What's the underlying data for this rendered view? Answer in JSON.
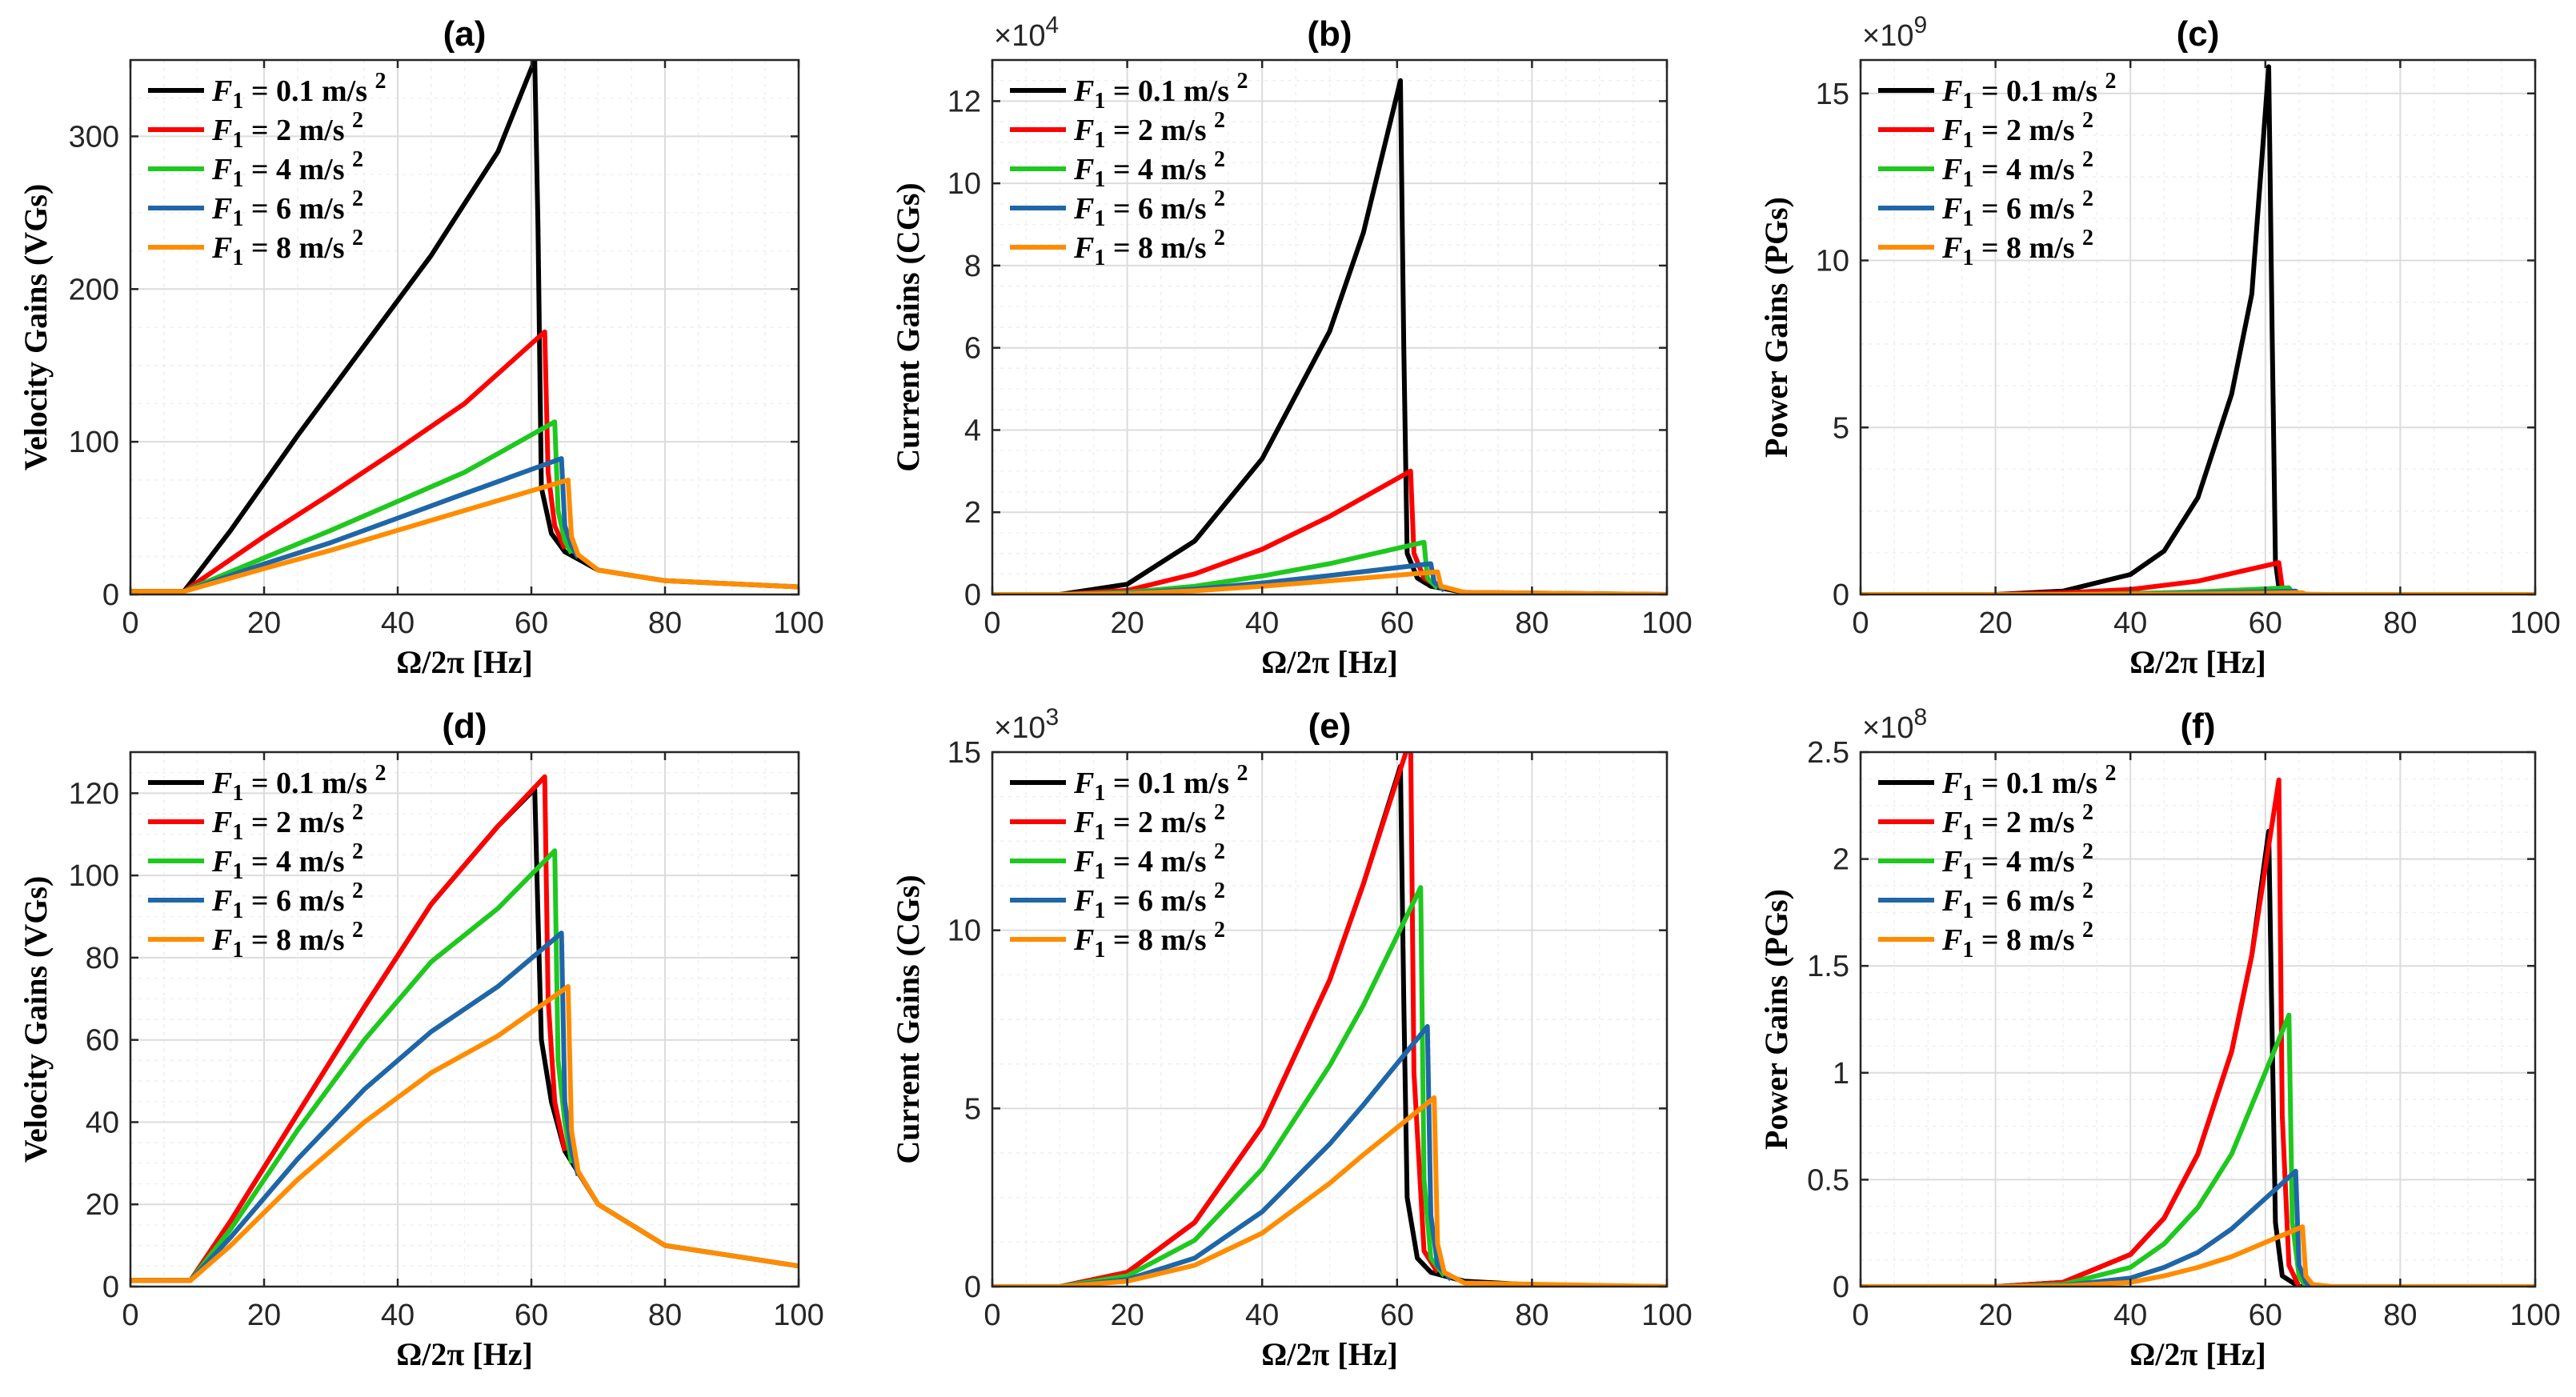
{
  "colors": {
    "0.1": "#000000",
    "2": "#ff0000",
    "4": "#1ec81e",
    "6": "#1f66a8",
    "8": "#ff8c00"
  },
  "legend_prefix": "F",
  "legend_subscript": "1",
  "legend_eq": " = ",
  "legend_unit": " m/s ",
  "legend_sup": "2",
  "chart_data": [
    {
      "id": "a",
      "type": "line",
      "title": "(a)",
      "xlabel": "Ω/2π [Hz]",
      "ylabel": "Velocity Gains (VGs)",
      "xlim": [
        0,
        100
      ],
      "ylim": [
        0,
        350
      ],
      "xticks": [
        0,
        20,
        40,
        60,
        80,
        100
      ],
      "yticks": [
        0,
        100,
        200,
        300
      ],
      "exponent": "",
      "legend": "top-left",
      "grid": true,
      "series": [
        {
          "name": "F1 = 0.1 m/s 2",
          "legend_value": "0.1",
          "color": "#000000",
          "x": [
            0,
            8,
            15,
            25,
            35,
            45,
            55,
            60.5,
            61.0,
            61.5,
            63,
            65,
            70,
            80,
            100
          ],
          "y": [
            2,
            2,
            42,
            104,
            163,
            222,
            290,
            350,
            240,
            70,
            40,
            28,
            16,
            9,
            5
          ]
        },
        {
          "name": "F1 = 2 m/s 2",
          "legend_value": "2",
          "color": "#ff0000",
          "x": [
            0,
            8,
            20,
            30,
            40,
            50,
            62,
            62.5,
            63.5,
            65
          ],
          "y": [
            2,
            2,
            38,
            66,
            95,
            125,
            172,
            80,
            45,
            30
          ]
        },
        {
          "name": "F1 = 4 m/s 2",
          "legend_value": "4",
          "color": "#1ec81e",
          "x": [
            0,
            8,
            20,
            30,
            40,
            50,
            63.5,
            64,
            65,
            66
          ],
          "y": [
            2,
            2,
            24,
            42,
            61,
            80,
            113,
            55,
            35,
            27
          ]
        },
        {
          "name": "F1 = 6 m/s 2",
          "legend_value": "6",
          "color": "#1f66a8",
          "x": [
            0,
            8,
            20,
            30,
            40,
            50,
            64.5,
            65,
            66,
            67
          ],
          "y": [
            2,
            2,
            20,
            34,
            50,
            66,
            89,
            45,
            32,
            24
          ]
        },
        {
          "name": "F1 = 8 m/s 2",
          "legend_value": "8",
          "color": "#ff8c00",
          "x": [
            0,
            8,
            20,
            30,
            40,
            50,
            65.5,
            66,
            67,
            70,
            80,
            100
          ],
          "y": [
            2,
            2,
            17,
            29,
            42,
            55,
            75,
            38,
            26,
            16,
            9,
            5
          ]
        }
      ]
    },
    {
      "id": "b",
      "type": "line",
      "title": "(b)",
      "xlabel": "Ω/2π [Hz]",
      "ylabel": "Current Gains (CGs)",
      "xlim": [
        0,
        100
      ],
      "ylim": [
        0,
        13
      ],
      "xticks": [
        0,
        20,
        40,
        60,
        80,
        100
      ],
      "yticks": [
        0,
        2,
        4,
        6,
        8,
        10,
        12
      ],
      "exponent": "4",
      "legend": "top-left",
      "grid": true,
      "series": [
        {
          "name": "F1 = 0.1 m/s 2",
          "legend_value": "0.1",
          "color": "#000000",
          "x": [
            0,
            10,
            20,
            30,
            40,
            50,
            55,
            60.5,
            61,
            61.5,
            63,
            65,
            70,
            100
          ],
          "y": [
            0,
            0,
            0.25,
            1.3,
            3.3,
            6.4,
            8.8,
            12.5,
            6,
            1,
            0.4,
            0.2,
            0.05,
            0
          ]
        },
        {
          "name": "F1 = 2 m/s 2",
          "legend_value": "2",
          "color": "#ff0000",
          "x": [
            0,
            10,
            20,
            30,
            40,
            50,
            62,
            62.5,
            64,
            66
          ],
          "y": [
            0,
            0,
            0.1,
            0.5,
            1.1,
            1.9,
            3.0,
            1.0,
            0.4,
            0.2
          ]
        },
        {
          "name": "F1 = 4 m/s 2",
          "legend_value": "4",
          "color": "#1ec81e",
          "x": [
            0,
            10,
            20,
            30,
            40,
            50,
            64,
            64.5,
            66
          ],
          "y": [
            0,
            0,
            0.05,
            0.2,
            0.45,
            0.75,
            1.27,
            0.4,
            0.15
          ]
        },
        {
          "name": "F1 = 6 m/s 2",
          "legend_value": "6",
          "color": "#1f66a8",
          "x": [
            0,
            10,
            20,
            30,
            40,
            50,
            65,
            65.5,
            67
          ],
          "y": [
            0,
            0,
            0.03,
            0.13,
            0.28,
            0.46,
            0.75,
            0.3,
            0.1
          ]
        },
        {
          "name": "F1 = 8 m/s 2",
          "legend_value": "8",
          "color": "#ff8c00",
          "x": [
            0,
            10,
            20,
            30,
            40,
            50,
            66,
            66.5,
            70,
            100
          ],
          "y": [
            0,
            0,
            0.02,
            0.09,
            0.2,
            0.33,
            0.55,
            0.2,
            0.05,
            0
          ]
        }
      ]
    },
    {
      "id": "c",
      "type": "line",
      "title": "(c)",
      "xlabel": "Ω/2π [Hz]",
      "ylabel": "Power Gains (PGs)",
      "xlim": [
        0,
        100
      ],
      "ylim": [
        0,
        16
      ],
      "xticks": [
        0,
        20,
        40,
        60,
        80,
        100
      ],
      "yticks": [
        0,
        5,
        10,
        15
      ],
      "exponent": "9",
      "legend": "top-left",
      "grid": true,
      "series": [
        {
          "name": "F1 = 0.1 m/s 2",
          "legend_value": "0.1",
          "color": "#000000",
          "x": [
            0,
            20,
            30,
            40,
            45,
            50,
            55,
            58,
            60.5,
            61,
            61.5,
            62,
            65,
            100
          ],
          "y": [
            0,
            0,
            0.1,
            0.6,
            1.3,
            2.9,
            6.0,
            9.0,
            15.8,
            8,
            1.0,
            0.2,
            0,
            0
          ]
        },
        {
          "name": "F1 = 2 m/s 2",
          "legend_value": "2",
          "color": "#ff0000",
          "x": [
            0,
            20,
            30,
            40,
            50,
            62,
            62.5,
            64
          ],
          "y": [
            0,
            0,
            0.05,
            0.15,
            0.4,
            0.95,
            0.2,
            0.05
          ]
        },
        {
          "name": "F1 = 4 m/s 2",
          "legend_value": "4",
          "color": "#1ec81e",
          "x": [
            0,
            30,
            40,
            50,
            63.5,
            64,
            66
          ],
          "y": [
            0,
            0,
            0.03,
            0.08,
            0.2,
            0.05,
            0
          ]
        },
        {
          "name": "F1 = 6 m/s 2",
          "legend_value": "6",
          "color": "#1f66a8",
          "x": [
            0,
            30,
            40,
            50,
            64.5,
            65,
            67
          ],
          "y": [
            0,
            0,
            0.01,
            0.04,
            0.1,
            0.02,
            0
          ]
        },
        {
          "name": "F1 = 8 m/s 2",
          "legend_value": "8",
          "color": "#ff8c00",
          "x": [
            0,
            30,
            40,
            50,
            65.5,
            66,
            70,
            100
          ],
          "y": [
            0,
            0,
            0.01,
            0.02,
            0.05,
            0.01,
            0,
            0
          ]
        }
      ]
    },
    {
      "id": "d",
      "type": "line",
      "title": "(d)",
      "xlabel": "Ω/2π [Hz]",
      "ylabel": "Velocity Gains (VGs)",
      "xlim": [
        0,
        100
      ],
      "ylim": [
        0,
        130
      ],
      "xticks": [
        0,
        20,
        40,
        60,
        80,
        100
      ],
      "yticks": [
        0,
        20,
        40,
        60,
        80,
        100,
        120
      ],
      "exponent": "",
      "legend": "top-left",
      "grid": true,
      "series": [
        {
          "name": "F1 = 0.1 m/s 2",
          "legend_value": "0.1",
          "color": "#000000",
          "x": [
            0,
            9,
            15,
            25,
            35,
            45,
            55,
            60.5,
            61,
            61.5,
            63,
            65,
            70,
            80,
            100
          ],
          "y": [
            1.5,
            1.5,
            16,
            42,
            68,
            93,
            112,
            121,
            90,
            60,
            45,
            33,
            20,
            10,
            5
          ]
        },
        {
          "name": "F1 = 2 m/s 2",
          "legend_value": "2",
          "color": "#ff0000",
          "x": [
            0,
            9,
            15,
            25,
            35,
            45,
            55,
            62,
            62.5,
            63.5,
            65
          ],
          "y": [
            1.5,
            1.5,
            16,
            42,
            68,
            93,
            112,
            124,
            70,
            45,
            33
          ]
        },
        {
          "name": "F1 = 4 m/s 2",
          "legend_value": "4",
          "color": "#1ec81e",
          "x": [
            0,
            9,
            15,
            25,
            35,
            45,
            55,
            63.5,
            64,
            65,
            66
          ],
          "y": [
            1.5,
            1.5,
            14,
            38,
            60,
            79,
            92,
            106,
            55,
            40,
            30
          ]
        },
        {
          "name": "F1 = 6 m/s 2",
          "legend_value": "6",
          "color": "#1f66a8",
          "x": [
            0,
            9,
            15,
            25,
            35,
            45,
            55,
            64.5,
            65,
            66,
            67
          ],
          "y": [
            1.5,
            1.5,
            12,
            31,
            48,
            62,
            73,
            86,
            45,
            33,
            27
          ]
        },
        {
          "name": "F1 = 8 m/s 2",
          "legend_value": "8",
          "color": "#ff8c00",
          "x": [
            0,
            9,
            15,
            25,
            35,
            45,
            55,
            65.5,
            66,
            67,
            70,
            80,
            100
          ],
          "y": [
            1.5,
            1.5,
            10,
            26,
            40,
            52,
            61,
            73,
            38,
            28,
            20,
            10,
            5
          ]
        }
      ]
    },
    {
      "id": "e",
      "type": "line",
      "title": "(e)",
      "xlabel": "Ω/2π [Hz]",
      "ylabel": "Current Gains (CGs)",
      "xlim": [
        0,
        100
      ],
      "ylim": [
        0,
        15
      ],
      "xticks": [
        0,
        20,
        40,
        60,
        80,
        100
      ],
      "yticks": [
        0,
        5,
        10,
        15
      ],
      "exponent": "3",
      "legend": "top-left",
      "grid": true,
      "series": [
        {
          "name": "F1 = 0.1 m/s 2",
          "legend_value": "0.1",
          "color": "#000000",
          "x": [
            0,
            10,
            20,
            30,
            40,
            50,
            55,
            60.5,
            61,
            61.5,
            63,
            65,
            70,
            80,
            100
          ],
          "y": [
            0,
            0,
            0.4,
            1.8,
            4.5,
            8.6,
            11.3,
            14.6,
            8,
            2.5,
            0.8,
            0.4,
            0.15,
            0.05,
            0
          ]
        },
        {
          "name": "F1 = 2 m/s 2",
          "legend_value": "2",
          "color": "#ff0000",
          "x": [
            0,
            10,
            20,
            30,
            40,
            50,
            55,
            62,
            62.5,
            64,
            66
          ],
          "y": [
            0,
            0,
            0.4,
            1.8,
            4.5,
            8.6,
            11.3,
            15.4,
            6,
            1.0,
            0.4
          ]
        },
        {
          "name": "F1 = 4 m/s 2",
          "legend_value": "4",
          "color": "#1ec81e",
          "x": [
            0,
            10,
            20,
            30,
            40,
            50,
            55,
            63.5,
            64,
            65,
            67
          ],
          "y": [
            0,
            0,
            0.3,
            1.3,
            3.3,
            6.2,
            7.9,
            11.2,
            3.0,
            0.8,
            0.3
          ]
        },
        {
          "name": "F1 = 6 m/s 2",
          "legend_value": "6",
          "color": "#1f66a8",
          "x": [
            0,
            10,
            20,
            30,
            40,
            50,
            55,
            64.5,
            65,
            66,
            68
          ],
          "y": [
            0,
            0,
            0.2,
            0.8,
            2.1,
            4.0,
            5.1,
            7.3,
            2.0,
            0.6,
            0.2
          ]
        },
        {
          "name": "F1 = 8 m/s 2",
          "legend_value": "8",
          "color": "#ff8c00",
          "x": [
            0,
            10,
            20,
            30,
            40,
            50,
            55,
            65.5,
            66,
            67,
            70,
            100
          ],
          "y": [
            0,
            0,
            0.15,
            0.6,
            1.5,
            2.9,
            3.7,
            5.3,
            1.2,
            0.4,
            0.1,
            0
          ]
        }
      ]
    },
    {
      "id": "f",
      "type": "line",
      "title": "(f)",
      "xlabel": "Ω/2π [Hz]",
      "ylabel": "Power Gains (PGs)",
      "xlim": [
        0,
        100
      ],
      "ylim": [
        0,
        2.5
      ],
      "xticks": [
        0,
        20,
        40,
        60,
        80,
        100
      ],
      "yticks": [
        0,
        0.5,
        1,
        1.5,
        2,
        2.5
      ],
      "exponent": "8",
      "legend": "top-left",
      "grid": true,
      "series": [
        {
          "name": "F1 = 0.1 m/s 2",
          "legend_value": "0.1",
          "color": "#000000",
          "x": [
            0,
            20,
            30,
            40,
            45,
            50,
            55,
            58,
            60.5,
            61,
            61.5,
            62.5,
            65,
            100
          ],
          "y": [
            0,
            0,
            0.02,
            0.15,
            0.32,
            0.62,
            1.1,
            1.55,
            2.13,
            1.2,
            0.3,
            0.05,
            0,
            0
          ]
        },
        {
          "name": "F1 = 2 m/s 2",
          "legend_value": "2",
          "color": "#ff0000",
          "x": [
            0,
            20,
            30,
            40,
            45,
            50,
            55,
            58,
            62,
            62.5,
            63.5,
            65
          ],
          "y": [
            0,
            0,
            0.02,
            0.15,
            0.32,
            0.62,
            1.1,
            1.55,
            2.37,
            0.8,
            0.1,
            0
          ]
        },
        {
          "name": "F1 = 4 m/s 2",
          "legend_value": "4",
          "color": "#1ec81e",
          "x": [
            0,
            20,
            30,
            40,
            45,
            50,
            55,
            63.5,
            64,
            65,
            66
          ],
          "y": [
            0,
            0,
            0.01,
            0.09,
            0.2,
            0.37,
            0.62,
            1.27,
            0.3,
            0.05,
            0
          ]
        },
        {
          "name": "F1 = 6 m/s 2",
          "legend_value": "6",
          "color": "#1f66a8",
          "x": [
            0,
            20,
            30,
            40,
            45,
            50,
            55,
            64.5,
            65,
            66,
            67
          ],
          "y": [
            0,
            0,
            0.005,
            0.04,
            0.09,
            0.16,
            0.27,
            0.54,
            0.1,
            0.02,
            0
          ]
        },
        {
          "name": "F1 = 8 m/s 2",
          "legend_value": "8",
          "color": "#ff8c00",
          "x": [
            0,
            20,
            30,
            40,
            45,
            50,
            55,
            65.5,
            66,
            67,
            70,
            100
          ],
          "y": [
            0,
            0,
            0.003,
            0.02,
            0.05,
            0.09,
            0.14,
            0.28,
            0.05,
            0.01,
            0,
            0
          ]
        }
      ]
    }
  ]
}
